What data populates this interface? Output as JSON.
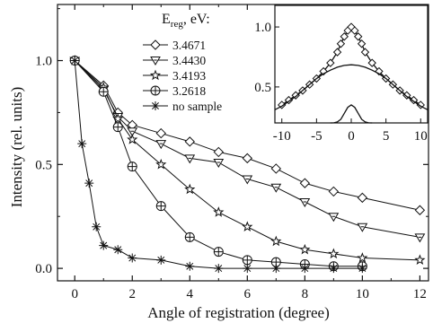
{
  "chart_data": [
    {
      "type": "line",
      "xlabel": "Angle of registration (degree)",
      "ylabel": "Intensity (rel. units)",
      "xlim": [
        -0.6,
        12.3
      ],
      "ylim": [
        -0.06,
        1.27
      ],
      "x_ticks": [
        "0",
        "2",
        "4",
        "6",
        "8",
        "10",
        "12"
      ],
      "y_ticks": [
        "0.0",
        "0.5",
        "1.0"
      ],
      "legend_title_main": "E",
      "legend_title_sub": "reg",
      "legend_title_unit": ", eV:",
      "legend_position": "top-center",
      "series": [
        {
          "name": "3.4671",
          "marker": "diamond",
          "x": [
            0,
            1,
            1.5,
            2,
            3,
            4,
            5,
            6,
            7,
            8,
            9,
            10,
            12
          ],
          "y": [
            1.0,
            0.88,
            0.75,
            0.69,
            0.65,
            0.61,
            0.56,
            0.53,
            0.48,
            0.41,
            0.37,
            0.34,
            0.28
          ]
        },
        {
          "name": "3.4430",
          "marker": "triangle-down",
          "x": [
            0,
            1,
            1.5,
            2,
            3,
            4,
            5,
            6,
            7,
            8,
            9,
            10,
            12
          ],
          "y": [
            1.0,
            0.86,
            0.73,
            0.66,
            0.6,
            0.53,
            0.51,
            0.43,
            0.39,
            0.32,
            0.25,
            0.2,
            0.15
          ]
        },
        {
          "name": "3.4193",
          "marker": "star",
          "x": [
            0,
            1,
            1.5,
            2,
            3,
            4,
            5,
            6,
            7,
            8,
            9,
            10,
            12
          ],
          "y": [
            1.0,
            0.87,
            0.72,
            0.62,
            0.5,
            0.38,
            0.27,
            0.2,
            0.13,
            0.09,
            0.07,
            0.05,
            0.04
          ]
        },
        {
          "name": "3.2618",
          "marker": "crossed-circle",
          "x": [
            0,
            1,
            1.5,
            2,
            3,
            4,
            5,
            6,
            7,
            8,
            9,
            10
          ],
          "y": [
            1.0,
            0.85,
            0.68,
            0.49,
            0.3,
            0.15,
            0.08,
            0.04,
            0.03,
            0.02,
            0.01,
            0.01
          ]
        },
        {
          "name": "no sample",
          "marker": "asterisk",
          "x": [
            0,
            0.25,
            0.5,
            0.75,
            1,
            1.5,
            2,
            3,
            4,
            5,
            6,
            7,
            8,
            9,
            10
          ],
          "y": [
            1.0,
            0.6,
            0.41,
            0.2,
            0.11,
            0.09,
            0.05,
            0.04,
            0.01,
            0.0,
            0.0,
            0.0,
            0.0,
            0.0,
            0.0
          ]
        }
      ]
    },
    {
      "type": "line",
      "placement": "inset-top-right",
      "xlim": [
        -11,
        11
      ],
      "ylim": [
        0.2,
        1.18
      ],
      "x_ticks": [
        "-10",
        "-5",
        "0",
        "5",
        "10"
      ],
      "y_ticks": [
        "0.5",
        "1.0"
      ],
      "series": [
        {
          "style": "diamond-markers-with-line",
          "x": [
            -10,
            -9,
            -8,
            -7,
            -6,
            -5,
            -4,
            -3,
            -2,
            -1.5,
            -1,
            -0.5,
            0,
            0.5,
            1,
            1.5,
            2,
            3,
            4,
            5,
            6,
            7,
            8,
            9,
            10
          ],
          "y": [
            0.35,
            0.39,
            0.43,
            0.47,
            0.52,
            0.57,
            0.63,
            0.7,
            0.79,
            0.86,
            0.92,
            0.97,
            1.0,
            0.97,
            0.92,
            0.86,
            0.79,
            0.7,
            0.63,
            0.57,
            0.52,
            0.47,
            0.43,
            0.39,
            0.35
          ]
        },
        {
          "style": "smooth-curve",
          "x": [
            -11,
            -10,
            -9,
            -8,
            -7,
            -6,
            -5,
            -4,
            -3,
            -2,
            -1,
            0,
            1,
            2,
            3,
            4,
            5,
            6,
            7,
            8,
            9,
            10,
            11
          ],
          "y": [
            0.31,
            0.34,
            0.38,
            0.42,
            0.47,
            0.52,
            0.57,
            0.61,
            0.64,
            0.665,
            0.68,
            0.685,
            0.68,
            0.665,
            0.64,
            0.61,
            0.57,
            0.52,
            0.47,
            0.42,
            0.38,
            0.34,
            0.31
          ]
        },
        {
          "style": "gaussian-curve",
          "x": [
            -3,
            -2.5,
            -2,
            -1.5,
            -1,
            -0.5,
            0,
            0.5,
            1,
            1.5,
            2,
            2.5,
            3
          ],
          "y": [
            0.2,
            0.201,
            0.208,
            0.23,
            0.28,
            0.33,
            0.35,
            0.33,
            0.28,
            0.23,
            0.208,
            0.201,
            0.2
          ]
        }
      ]
    }
  ]
}
